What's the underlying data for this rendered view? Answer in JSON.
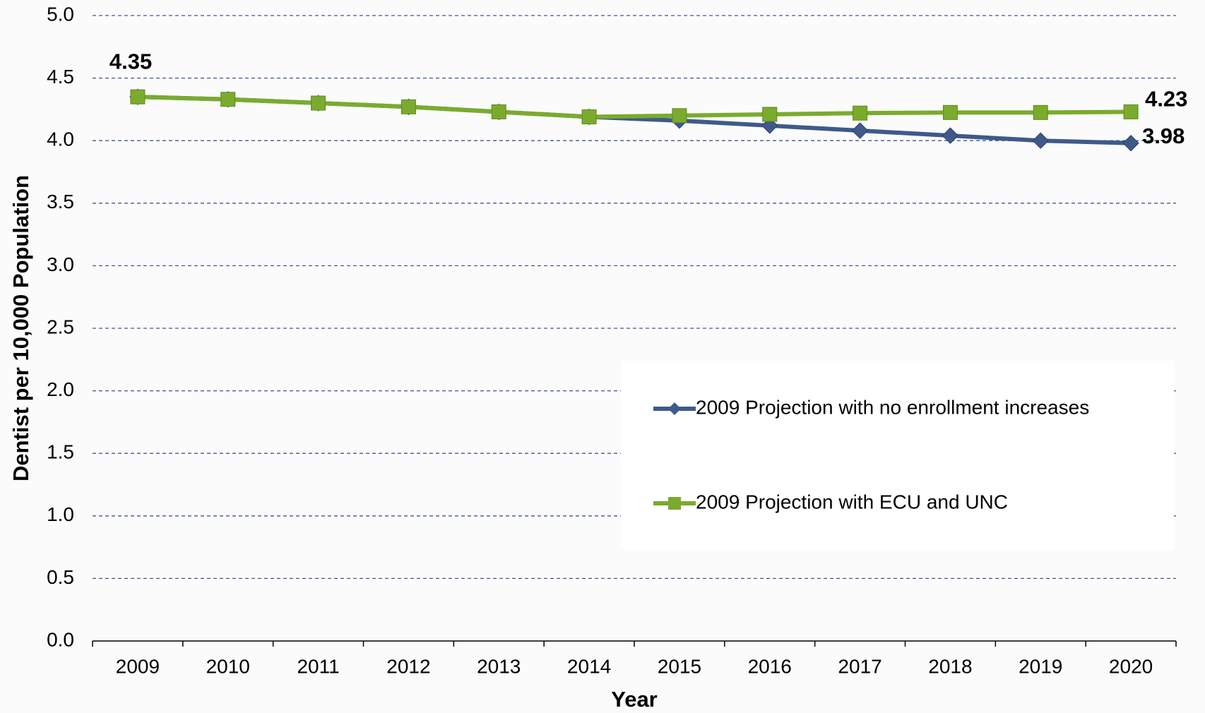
{
  "chart_data": {
    "type": "line",
    "x_label": "Year",
    "y_label": "Dentist per 10,000 Population",
    "categories": [
      "2009",
      "2010",
      "2011",
      "2012",
      "2013",
      "2014",
      "2015",
      "2016",
      "2017",
      "2018",
      "2019",
      "2020"
    ],
    "series": [
      {
        "name": "2009 Projection with no enrollment increases",
        "color": "#3f5a8a",
        "marker": "diamond",
        "values": [
          4.35,
          4.33,
          4.3,
          4.27,
          4.23,
          4.19,
          4.16,
          4.12,
          4.08,
          4.04,
          4.0,
          3.98
        ]
      },
      {
        "name": "2009 Projection with ECU and UNC",
        "color": "#7aab2e",
        "marker": "square",
        "values": [
          4.35,
          4.33,
          4.3,
          4.27,
          4.23,
          4.19,
          4.2,
          4.21,
          4.22,
          4.225,
          4.225,
          4.23
        ]
      }
    ],
    "ylim": [
      0,
      5
    ],
    "yticks": [
      {
        "value": 0,
        "label": "0.0"
      },
      0.5,
      {
        "value": 1,
        "label": "1.0"
      },
      1.5,
      {
        "value": 2,
        "label": "2.0"
      },
      2.5,
      {
        "value": 3,
        "label": "3.0"
      },
      3.5,
      {
        "value": 4,
        "label": "4.0"
      },
      4.5,
      {
        "value": 5,
        "label": "5.0"
      }
    ],
    "grid": true,
    "legend": "lower right"
  }
}
